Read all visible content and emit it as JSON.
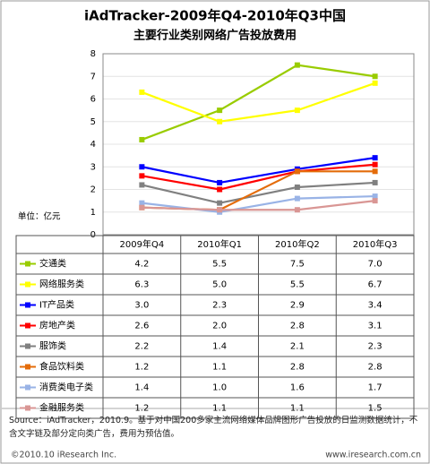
{
  "chart_data": {
    "type": "line",
    "title": "iAdTracker-2009年Q4-2010年Q3中国",
    "subtitle": "主要行业类别网络广告投放费用",
    "y_label": "单位：亿元",
    "categories": [
      "2009年Q4",
      "2010年Q1",
      "2010年Q2",
      "2010年Q3"
    ],
    "ylim": [
      0,
      8
    ],
    "yticks": [
      0,
      1,
      2,
      3,
      4,
      5,
      6,
      7,
      8
    ],
    "grid": true,
    "series": [
      {
        "name": "交通类",
        "color": "#99cc00",
        "values": [
          4.2,
          5.5,
          7.5,
          7.0
        ],
        "value_labels": [
          "4.2",
          "5.5",
          "7.5",
          "7.0"
        ]
      },
      {
        "name": "网络服务类",
        "color": "#ffff00",
        "values": [
          6.3,
          5.0,
          5.5,
          6.7
        ],
        "value_labels": [
          "6.3",
          "5.0",
          "5.5",
          "6.7"
        ]
      },
      {
        "name": "IT产品类",
        "color": "#0000ff",
        "values": [
          3.0,
          2.3,
          2.9,
          3.4
        ],
        "value_labels": [
          "3.0",
          "2.3",
          "2.9",
          "3.4"
        ]
      },
      {
        "name": "房地产类",
        "color": "#ff0000",
        "values": [
          2.6,
          2.0,
          2.8,
          3.1
        ],
        "value_labels": [
          "2.6",
          "2.0",
          "2.8",
          "3.1"
        ]
      },
      {
        "name": "服饰类",
        "color": "#808080",
        "values": [
          2.2,
          1.4,
          2.1,
          2.3
        ],
        "value_labels": [
          "2.2",
          "1.4",
          "2.1",
          "2.3"
        ]
      },
      {
        "name": "食品饮料类",
        "color": "#e46c0a",
        "values": [
          1.2,
          1.1,
          2.8,
          2.8
        ],
        "value_labels": [
          "1.2",
          "1.1",
          "2.8",
          "2.8"
        ]
      },
      {
        "name": "消费类电子类",
        "color": "#99b3e6",
        "values": [
          1.4,
          1.0,
          1.6,
          1.7
        ],
        "value_labels": [
          "1.4",
          "1.0",
          "1.6",
          "1.7"
        ]
      },
      {
        "name": "金融服务类",
        "color": "#d99694",
        "values": [
          1.2,
          1.1,
          1.1,
          1.5
        ],
        "value_labels": [
          "1.2",
          "1.1",
          "1.1",
          "1.5"
        ]
      }
    ],
    "source": "Source：iAdTracker，2010.9。基于对中国200多家主流网络媒体品牌图形广告投放的日监测数据统计，不含文字链及部分定向类广告，费用为预估值。",
    "copyright": "©2010.10 iResearch Inc.",
    "website": "www.iresearch.com.cn"
  }
}
